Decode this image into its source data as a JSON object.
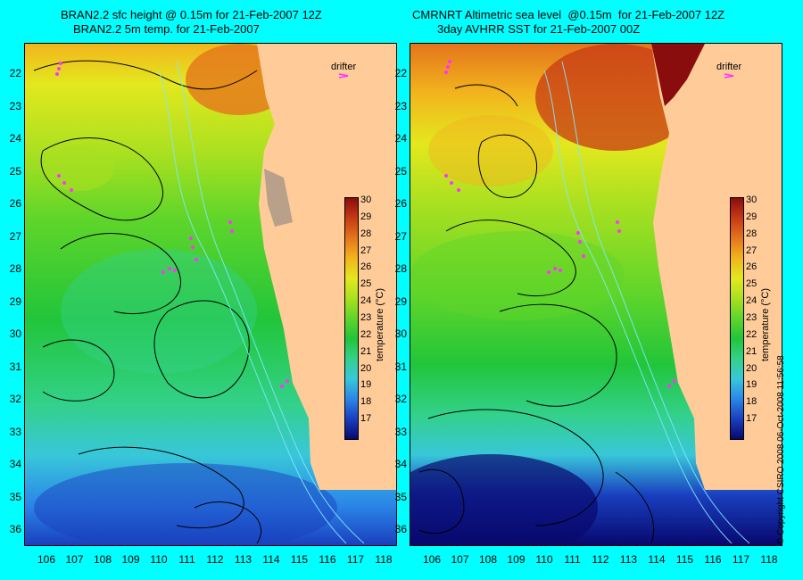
{
  "left_panel": {
    "title_line1": "BRAN2.2 sfc height @ 0.15m for 21-Feb-2007 12Z",
    "title_line2": "BRAN2.2 5m temp. for 21-Feb-2007",
    "legend_label": "drifter"
  },
  "right_panel": {
    "title_line1": "CMRNRT Altimetric sea level  @0.15m  for 21-Feb-2007 12Z",
    "title_line2": "3day AVHRR SST for 21-Feb-2007 00Z",
    "legend_label": "drifter"
  },
  "latitude_labels": [
    "22",
    "23",
    "24",
    "25",
    "26",
    "27",
    "28",
    "29",
    "30",
    "31",
    "32",
    "33",
    "34",
    "35",
    "36"
  ],
  "longitude_labels": [
    "106",
    "107",
    "108",
    "109",
    "110",
    "111",
    "112",
    "113",
    "114",
    "115",
    "116",
    "117",
    "118"
  ],
  "colorbar": {
    "title": "temperature (°C)",
    "ticks": [
      "30",
      "29",
      "28",
      "27",
      "26",
      "25",
      "24",
      "23",
      "22",
      "21",
      "20",
      "19",
      "18",
      "17"
    ],
    "colors": [
      "#08086e",
      "#1a3fbf",
      "#2b86e8",
      "#38c7d9",
      "#33d18a",
      "#22c53a",
      "#5fd52a",
      "#a9e020",
      "#e3e81e",
      "#f2b51d",
      "#e4751c",
      "#c73a15",
      "#8a0d0d"
    ]
  },
  "copyright": "© Copyright CSIRO 2008   06-Oct-2008 11:56:58",
  "colors": {
    "land": "#FFCC99",
    "background": "#00FFFF",
    "drifter": "#FF33FF"
  }
}
